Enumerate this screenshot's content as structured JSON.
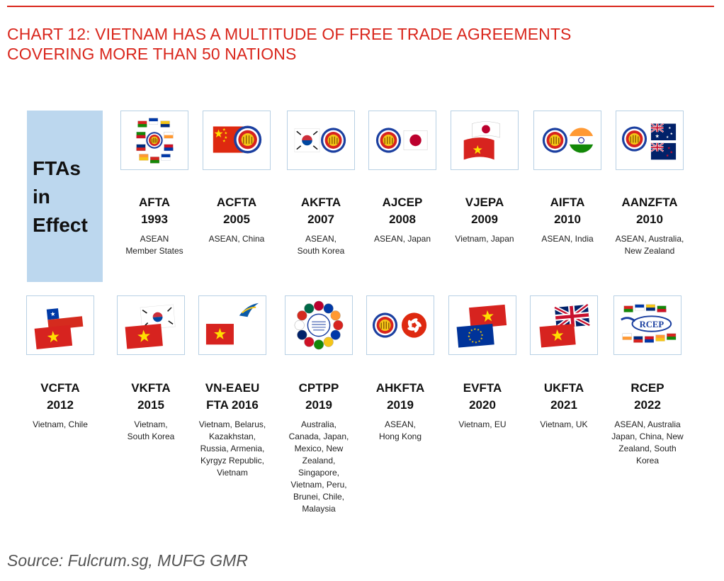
{
  "title_lines": [
    "CHART 12: VIETNAM HAS A MULTITUDE OF FREE TRADE AGREEMENTS",
    "COVERING MORE THAN 50 NATIONS"
  ],
  "side_label": [
    "FTAs",
    "in",
    "Effect"
  ],
  "source": "Source: Fulcrum.sg, MUFG GMR",
  "colors": {
    "title": "#d9261c",
    "side_panel": "#bcd7ee",
    "box_border": "#b8d0e4"
  },
  "rows": [
    [
      {
        "name": "AFTA",
        "year": "1993",
        "members": "ASEAN\nMember States",
        "icon": "asean-member-flags-icon"
      },
      {
        "name": "ACFTA",
        "year": "2005",
        "members": "ASEAN, China",
        "icon": "china-asean-flags-icon"
      },
      {
        "name": "AKFTA",
        "year": "2007",
        "members": "ASEAN,\nSouth Korea",
        "icon": "south-korea-asean-flags-icon"
      },
      {
        "name": "AJCEP",
        "year": "2008",
        "members": "ASEAN, Japan",
        "icon": "asean-japan-flags-icon"
      },
      {
        "name": "VJEPA",
        "year": "2009",
        "members": "Vietnam, Japan",
        "icon": "japan-vietnam-flags-icon"
      },
      {
        "name": "AIFTA",
        "year": "2010",
        "members": "ASEAN, India",
        "icon": "asean-india-flags-icon"
      },
      {
        "name": "AANZFTA",
        "year": "2010",
        "members": "ASEAN, Australia,\nNew Zealand",
        "icon": "asean-australia-newzealand-flags-icon"
      }
    ],
    [
      {
        "name": "VCFTA",
        "year": "2012",
        "members": "Vietnam, Chile",
        "icon": "chile-vietnam-flags-icon"
      },
      {
        "name": "VKFTA",
        "year": "2015",
        "members": "Vietnam,\nSouth Korea",
        "icon": "south-korea-vietnam-flags-icon"
      },
      {
        "name": "VN-EAEU",
        "year": "FTA 2016",
        "members": "Vietnam, Belarus,\nKazakhstan,\nRussia, Armenia,\nKyrgyz Republic,\nVietnam",
        "icon": "vietnam-eaeu-flags-icon"
      },
      {
        "name": "CPTPP",
        "year": "2019",
        "members": "Australia,\nCanada, Japan,\nMexico, New\nZealand,\nSingapore,\nVietnam, Peru,\nBrunei, Chile,\nMalaysia",
        "icon": "cptpp-member-flags-icon"
      },
      {
        "name": "AHKFTA",
        "year": "2019",
        "members": "ASEAN,\nHong Kong",
        "icon": "asean-hongkong-flags-icon"
      },
      {
        "name": "EVFTA",
        "year": "2020",
        "members": "Vietnam, EU",
        "icon": "vietnam-eu-flags-icon"
      },
      {
        "name": "UKFTA",
        "year": "2021",
        "members": "Vietnam, UK",
        "icon": "uk-vietnam-flags-icon"
      },
      {
        "name": "RCEP",
        "year": "2022",
        "members": "ASEAN, Australia\nJapan, China, New\nZealand, South\nKorea",
        "icon": "rcep-logo-icon",
        "logo_text": "RCEP"
      }
    ]
  ]
}
